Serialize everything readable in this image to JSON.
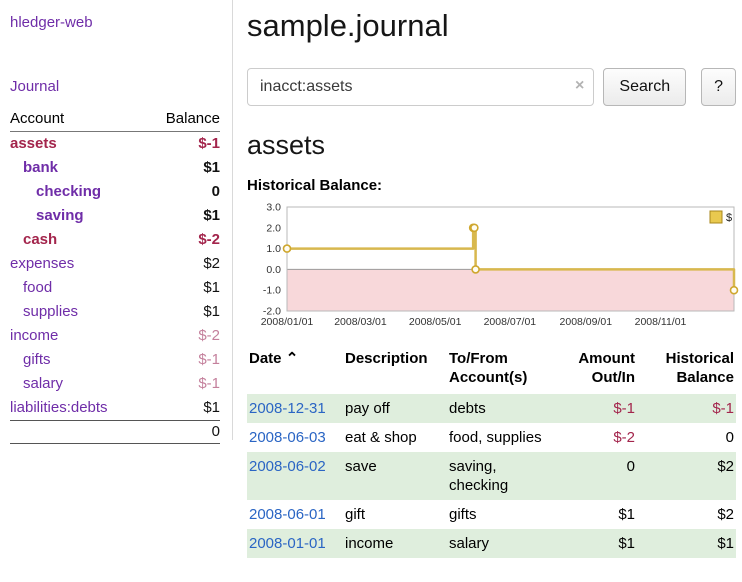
{
  "sidebar": {
    "app_title": "hledger-web",
    "journal_label": "Journal",
    "accounts": {
      "header_account": "Account",
      "header_balance": "Balance",
      "rows": [
        {
          "name": "assets",
          "indent": 0,
          "bold": true,
          "name_color": "maroon",
          "balance": "$-1",
          "balance_color": "maroon"
        },
        {
          "name": "bank",
          "indent": 1,
          "bold": true,
          "name_color": "purple",
          "balance": "$1",
          "balance_color": "black"
        },
        {
          "name": "checking",
          "indent": 2,
          "bold": true,
          "name_color": "purple",
          "balance": "0",
          "balance_color": "black"
        },
        {
          "name": "saving",
          "indent": 2,
          "bold": true,
          "name_color": "purple",
          "balance": "$1",
          "balance_color": "black"
        },
        {
          "name": "cash",
          "indent": 1,
          "bold": true,
          "name_color": "maroon",
          "balance": "$-2",
          "balance_color": "maroon"
        },
        {
          "name": "expenses",
          "indent": 0,
          "bold": false,
          "name_color": "purple",
          "balance": "$2",
          "balance_color": "black"
        },
        {
          "name": "food",
          "indent": 1,
          "bold": false,
          "name_color": "purple",
          "balance": "$1",
          "balance_color": "black"
        },
        {
          "name": "supplies",
          "indent": 1,
          "bold": false,
          "name_color": "purple",
          "balance": "$1",
          "balance_color": "black"
        },
        {
          "name": "income",
          "indent": 0,
          "bold": false,
          "name_color": "purple",
          "balance": "$-2",
          "balance_color": "rose"
        },
        {
          "name": "gifts",
          "indent": 1,
          "bold": false,
          "name_color": "purple",
          "balance": "$-1",
          "balance_color": "rose"
        },
        {
          "name": "salary",
          "indent": 1,
          "bold": false,
          "name_color": "purple",
          "balance": "$-1",
          "balance_color": "rose"
        },
        {
          "name": "liabilities:debts",
          "indent": 0,
          "bold": false,
          "name_color": "purple",
          "balance": "$1",
          "balance_color": "black"
        }
      ],
      "total": "0"
    }
  },
  "main": {
    "title": "sample.journal",
    "search": {
      "value": "inacct:assets",
      "clear_icon": "×",
      "button_label": "Search",
      "help_label": "?"
    },
    "account_heading": "assets",
    "chart_label": "Historical Balance:"
  },
  "chart_data": {
    "type": "line",
    "step": true,
    "title": "Historical Balance:",
    "x_range": [
      "2008-01-01",
      "2008-12-31"
    ],
    "ylim": [
      -2,
      3
    ],
    "yticks": [
      3,
      2,
      1,
      0,
      -1,
      -2
    ],
    "xtick_dates": [
      "2008-01-01",
      "2008-03-01",
      "2008-05-01",
      "2008-07-01",
      "2008-09-01",
      "2008-11-01"
    ],
    "xtick_labels": [
      "2008/01/01",
      "2008/03/01",
      "2008/05/01",
      "2008/07/01",
      "2008/09/01",
      "2008/11/01"
    ],
    "legend_position": "top-right",
    "series": [
      {
        "name": "$",
        "points": [
          [
            "2008-01-01",
            1
          ],
          [
            "2008-06-01",
            2
          ],
          [
            "2008-06-02",
            2
          ],
          [
            "2008-06-03",
            0
          ],
          [
            "2008-12-31",
            -1
          ]
        ]
      }
    ],
    "colors": {
      "line": "#d8b84e",
      "marker_stroke": "#cfa72e",
      "marker_fill": "#fffdf2",
      "negative_region": "#f8d8da",
      "legend_fill": "#e9c94f",
      "legend_stroke": "#a8871c"
    }
  },
  "transactions": {
    "headers": {
      "date": "Date",
      "sort_indicator": "⌃",
      "description": "Description",
      "account": "To/From Account(s)",
      "amount": "Amount Out/In",
      "balance": "Historical Balance"
    },
    "rows": [
      {
        "date": "2008-12-31",
        "description": "pay off",
        "accounts": "debts",
        "amount": "$-1",
        "amount_negative": true,
        "balance": "$-1",
        "balance_negative": true
      },
      {
        "date": "2008-06-03",
        "description": "eat & shop",
        "accounts": "food, supplies",
        "amount": "$-2",
        "amount_negative": true,
        "balance": "0",
        "balance_negative": false
      },
      {
        "date": "2008-06-02",
        "description": "save",
        "accounts": "saving, checking",
        "amount": "0",
        "amount_negative": false,
        "balance": "$2",
        "balance_negative": false
      },
      {
        "date": "2008-06-01",
        "description": "gift",
        "accounts": "gifts",
        "amount": "$1",
        "amount_negative": false,
        "balance": "$2",
        "balance_negative": false
      },
      {
        "date": "2008-01-01",
        "description": "income",
        "accounts": "salary",
        "amount": "$1",
        "amount_negative": false,
        "balance": "$1",
        "balance_negative": false
      }
    ]
  },
  "colors": {
    "link_purple": "#6f2da8",
    "link_blue": "#2a65c4",
    "negative_strong": "#a3254c",
    "negative_muted": "#c4809c",
    "row_stripe_green": "#dfeedd"
  }
}
